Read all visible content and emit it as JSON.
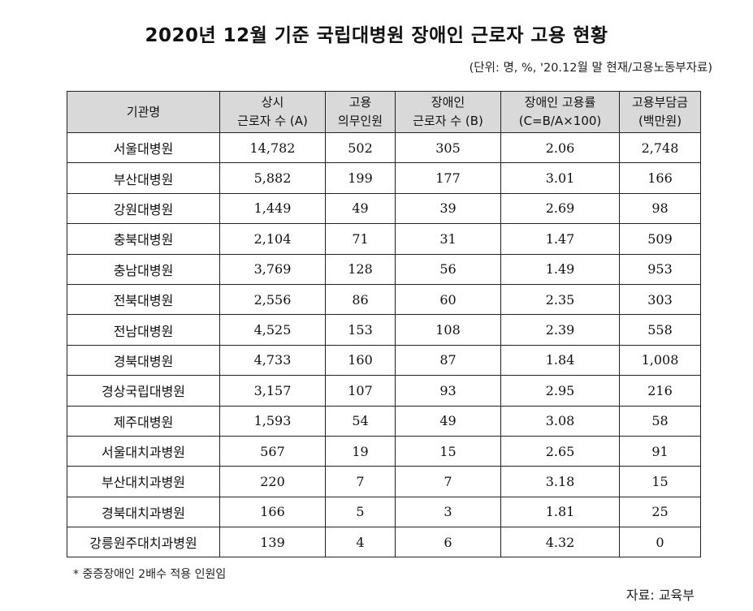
{
  "title": "2020년 12월 기준 국립대병원 장애인 근로자 고용 현황",
  "unit_note": "(단위: 명, %, '20.12월 말 현재/고용노동부자료)",
  "table": {
    "headers": [
      {
        "line1": "기관명",
        "line2": ""
      },
      {
        "line1": "상시",
        "line2": "근로자 수 (A)"
      },
      {
        "line1": "고용",
        "line2": "의무인원"
      },
      {
        "line1": "장애인",
        "line2": "근로자 수 (B)"
      },
      {
        "line1": "장애인 고용률",
        "line2": "(C=B/A×100)"
      },
      {
        "line1": "고용부담금",
        "line2": "(백만원)"
      }
    ],
    "rows": [
      [
        "서울대병원",
        "14,782",
        "502",
        "305",
        "2.06",
        "2,748"
      ],
      [
        "부산대병원",
        "5,882",
        "199",
        "177",
        "3.01",
        "166"
      ],
      [
        "강원대병원",
        "1,449",
        "49",
        "39",
        "2.69",
        "98"
      ],
      [
        "충북대병원",
        "2,104",
        "71",
        "31",
        "1.47",
        "509"
      ],
      [
        "충남대병원",
        "3,769",
        "128",
        "56",
        "1.49",
        "953"
      ],
      [
        "전북대병원",
        "2,556",
        "86",
        "60",
        "2.35",
        "303"
      ],
      [
        "전남대병원",
        "4,525",
        "153",
        "108",
        "2.39",
        "558"
      ],
      [
        "경북대병원",
        "4,733",
        "160",
        "87",
        "1.84",
        "1,008"
      ],
      [
        "경상국립대병원",
        "3,157",
        "107",
        "93",
        "2.95",
        "216"
      ],
      [
        "제주대병원",
        "1,593",
        "54",
        "49",
        "3.08",
        "58"
      ],
      [
        "서울대치과병원",
        "567",
        "19",
        "15",
        "2.65",
        "91"
      ],
      [
        "부산대치과병원",
        "220",
        "7",
        "7",
        "3.18",
        "15"
      ],
      [
        "경북대치과병원",
        "166",
        "5",
        "3",
        "1.81",
        "25"
      ],
      [
        "강릉원주대치과병원",
        "139",
        "4",
        "6",
        "4.32",
        "0"
      ]
    ]
  },
  "footnote": "* 중증장애인 2배수 적용 인원임",
  "source": "자료: 교육부"
}
